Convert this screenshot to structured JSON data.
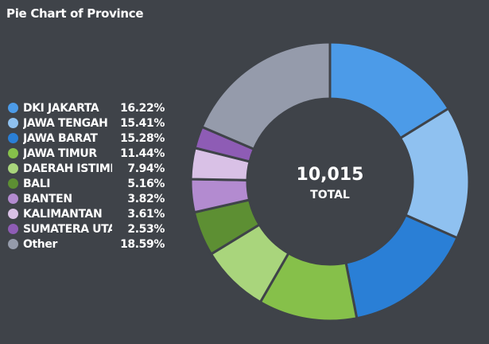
{
  "title": "Pie Chart of Province",
  "chart_data": {
    "type": "pie",
    "style": "donut",
    "total_value": "10,015",
    "total_label": "TOTAL",
    "legend_position": "left",
    "slices": [
      {
        "label": "DKI JAKARTA",
        "percent_label": "16.22%",
        "value": 16.22,
        "color": "#4c9be8"
      },
      {
        "label": "JAWA TENGAH",
        "percent_label": "15.41%",
        "value": 15.41,
        "color": "#8fc1f0"
      },
      {
        "label": "JAWA BARAT",
        "percent_label": "15.28%",
        "value": 15.28,
        "color": "#2a7fd6"
      },
      {
        "label": "JAWA TIMUR",
        "percent_label": "11.44%",
        "value": 11.44,
        "color": "#86c04a"
      },
      {
        "label": "DAERAH ISTIMEWA",
        "percent_label": "7.94%",
        "value": 7.94,
        "color": "#a9d57c"
      },
      {
        "label": "BALI",
        "percent_label": "5.16%",
        "value": 5.16,
        "color": "#5d8f33"
      },
      {
        "label": "BANTEN",
        "percent_label": "3.82%",
        "value": 3.82,
        "color": "#b38bd0"
      },
      {
        "label": "KALIMANTAN",
        "percent_label": "3.61%",
        "value": 3.61,
        "color": "#d9c1e6"
      },
      {
        "label": "SUMATERA UTARA",
        "percent_label": "2.53%",
        "value": 2.53,
        "color": "#8e5cb5"
      },
      {
        "label": "Other",
        "percent_label": "18.59%",
        "value": 18.59,
        "color": "#959bab"
      }
    ]
  }
}
